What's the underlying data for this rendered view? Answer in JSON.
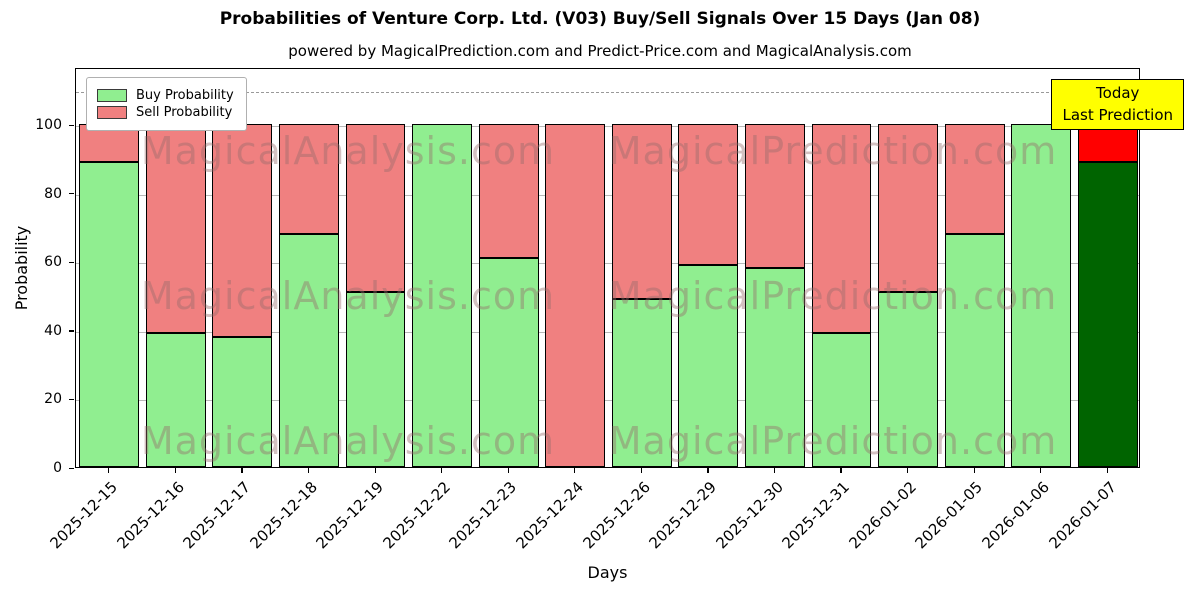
{
  "chart": {
    "title": "Probabilities of Venture Corp. Ltd. (V03) Buy/Sell Signals Over 15 Days (Jan 08)",
    "subtitle": "powered by MagicalPrediction.com and Predict-Price.com and MagicalAnalysis.com",
    "xlabel": "Days",
    "ylabel": "Probability"
  },
  "chart_data": {
    "type": "bar",
    "stacked": true,
    "title": "Probabilities of Venture Corp. Ltd. (V03) Buy/Sell Signals Over 15 Days (Jan 08)",
    "categories": [
      "2025-12-15",
      "2025-12-16",
      "2025-12-17",
      "2025-12-18",
      "2025-12-19",
      "2025-12-22",
      "2025-12-23",
      "2025-12-24",
      "2025-12-26",
      "2025-12-29",
      "2025-12-30",
      "2025-12-31",
      "2026-01-02",
      "2026-01-05",
      "2026-01-06",
      "2026-01-07"
    ],
    "series": [
      {
        "name": "Buy Probability",
        "color": "#90EE90",
        "values": [
          89,
          39,
          38,
          68,
          51,
          100,
          61,
          0,
          49,
          59,
          58,
          39,
          51,
          68,
          100,
          89
        ]
      },
      {
        "name": "Sell Probability",
        "color": "#F08080",
        "values": [
          11,
          61,
          62,
          32,
          49,
          0,
          39,
          100,
          51,
          41,
          42,
          61,
          49,
          32,
          0,
          11
        ]
      }
    ],
    "last_bar_colors": {
      "buy": "#006400",
      "sell": "#FF0000"
    },
    "xlabel": "Days",
    "ylabel": "Probability",
    "ylim": [
      0,
      116.67
    ],
    "yticks": [
      0,
      20,
      40,
      60,
      80,
      100
    ],
    "dashed_line_y": 110,
    "grid": true,
    "legend_position": "upper-left"
  },
  "legend": {
    "items": [
      {
        "label": "Buy Probability",
        "color": "#90EE90"
      },
      {
        "label": "Sell Probability",
        "color": "#F08080"
      }
    ]
  },
  "annotation": {
    "lines": [
      "Today",
      "Last Prediction"
    ],
    "bg": "#FFFF00"
  },
  "watermarks": [
    {
      "text": "MagicalAnalysis.com"
    },
    {
      "text": "MagicalPrediction.com"
    }
  ]
}
